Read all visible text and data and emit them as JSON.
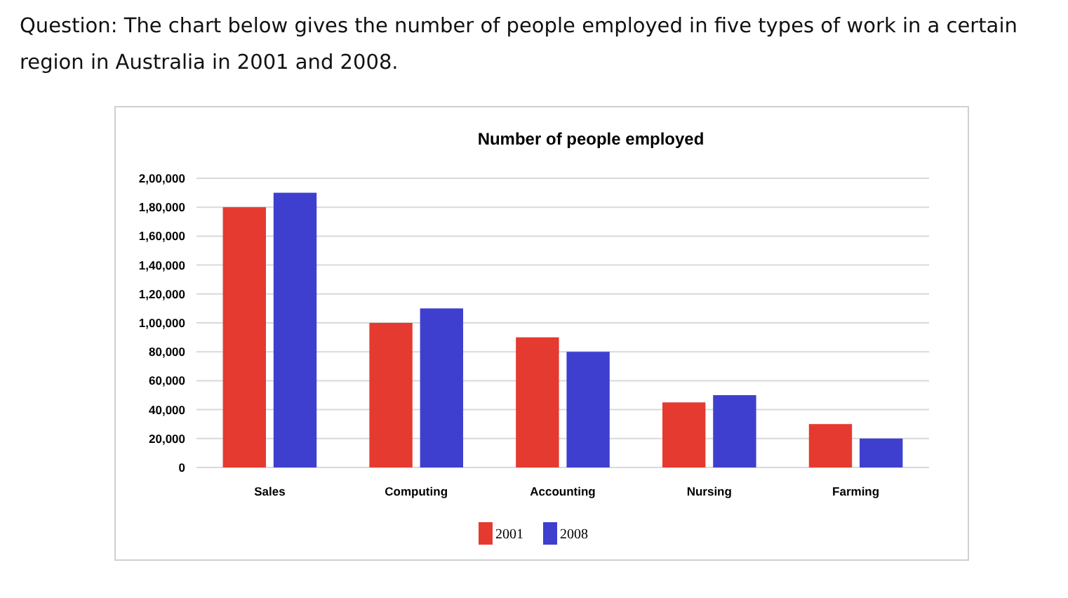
{
  "chart_data": {
    "type": "bar",
    "title": "Number of people employed",
    "annotations": [
      "Question: The chart below gives the number of people employed in five types of work in a certain region in Australia in 2001 and 2008."
    ],
    "categories": [
      "Sales",
      "Computing",
      "Accounting",
      "Nursing",
      "Farming"
    ],
    "series": [
      {
        "name": "2001",
        "color": "#e53a2f",
        "values": [
          180000,
          100000,
          90000,
          45000,
          30000
        ]
      },
      {
        "name": "2008",
        "color": "#3f3fcf",
        "values": [
          190000,
          110000,
          80000,
          50000,
          20000
        ]
      }
    ],
    "ylim": [
      0,
      200000
    ],
    "yticks": [
      {
        "value": 0,
        "label": "0"
      },
      {
        "value": 20000,
        "label": "20,000"
      },
      {
        "value": 40000,
        "label": "40,000"
      },
      {
        "value": 60000,
        "label": "60,000"
      },
      {
        "value": 80000,
        "label": "80,000"
      },
      {
        "value": 100000,
        "label": "1,00,000"
      },
      {
        "value": 120000,
        "label": "1,20,000"
      },
      {
        "value": 140000,
        "label": "1,40,000"
      },
      {
        "value": 160000,
        "label": "1,60,000"
      },
      {
        "value": 180000,
        "label": "1,80,000"
      },
      {
        "value": 200000,
        "label": "2,00,000"
      }
    ],
    "grid": "y",
    "legend": "bottom"
  }
}
